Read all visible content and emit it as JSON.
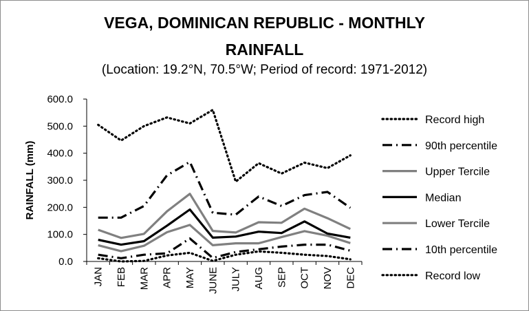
{
  "chart_data": {
    "type": "line",
    "title": "VEGA, DOMINICAN REPUBLIC - MONTHLY RAINFALL",
    "title_lines": [
      "VEGA, DOMINICAN REPUBLIC - MONTHLY",
      "RAINFALL"
    ],
    "subtitle": "(Location: 19.2°N, 70.5°W; Period of record: 1971-2012)",
    "xlabel": "",
    "ylabel": "RAINFALL (mm)",
    "ylim": [
      0,
      600
    ],
    "yticks": [
      "0.0",
      "100.0",
      "200.0",
      "300.0",
      "400.0",
      "500.0",
      "600.0"
    ],
    "ytick_values": [
      0,
      100,
      200,
      300,
      400,
      500,
      600
    ],
    "grid": false,
    "legend_position": "right",
    "categories": [
      "JAN",
      "FEB",
      "MAR",
      "APR",
      "MAY",
      "JUNE",
      "JULY",
      "AUG",
      "SEP",
      "OCT",
      "NOV",
      "DEC"
    ],
    "series": [
      {
        "name": "Record high",
        "style": "dotted",
        "color": "#000000",
        "values": [
          505,
          447,
          500,
          532,
          510,
          560,
          295,
          363,
          325,
          365,
          345,
          392
        ]
      },
      {
        "name": "90th percentile",
        "style": "dash-dot",
        "color": "#000000",
        "values": [
          162,
          162,
          205,
          318,
          368,
          180,
          173,
          240,
          205,
          245,
          257,
          198
        ]
      },
      {
        "name": "Upper Tercile",
        "style": "solid",
        "color": "#808080",
        "values": [
          117,
          87,
          102,
          185,
          250,
          113,
          107,
          145,
          143,
          195,
          160,
          120
        ]
      },
      {
        "name": "Median",
        "style": "solid",
        "color": "#000000",
        "values": [
          80,
          62,
          75,
          132,
          192,
          88,
          92,
          110,
          105,
          148,
          103,
          88
        ]
      },
      {
        "name": "Lower Tercile",
        "style": "solid",
        "color": "#808080",
        "values": [
          60,
          38,
          58,
          108,
          135,
          60,
          67,
          67,
          90,
          112,
          95,
          68
        ]
      },
      {
        "name": "10th percentile",
        "style": "dash-dot",
        "color": "#000000",
        "values": [
          25,
          12,
          25,
          30,
          85,
          13,
          35,
          45,
          55,
          62,
          62,
          40
        ]
      },
      {
        "name": "Record low",
        "style": "dotted",
        "color": "#000000",
        "values": [
          12,
          0,
          2,
          22,
          32,
          2,
          25,
          37,
          32,
          25,
          20,
          8
        ]
      }
    ]
  }
}
